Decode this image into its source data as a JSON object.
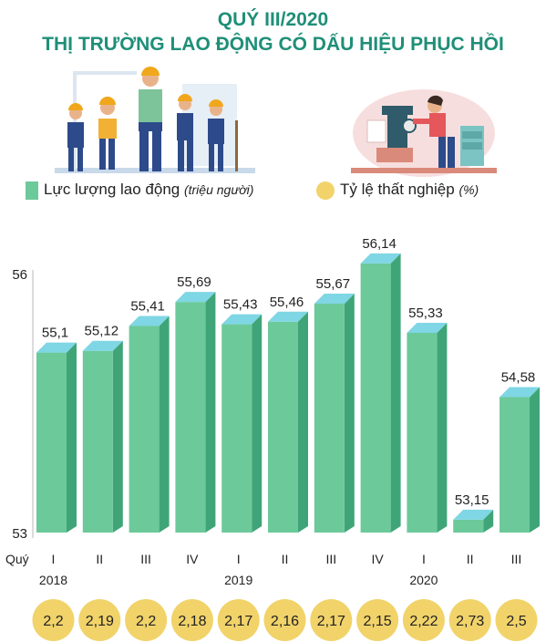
{
  "title_line1": "QUÝ III/2020",
  "title_line2": "THỊ TRƯỜNG LAO ĐỘNG CÓ DẤU HIỆU PHỤC HỒI",
  "legend": {
    "labor_label": "Lực lượng lao động",
    "labor_unit": "(triệu người)",
    "rate_label": "Tỷ lệ thất nghiệp",
    "rate_unit": "(%)"
  },
  "colors": {
    "title": "#1f8f78",
    "bar_front": "#6cc99a",
    "bar_side": "#3fa578",
    "bar_top": "#7fd6e4",
    "circle": "#f1d36a"
  },
  "chart_data": {
    "type": "bar",
    "x_axis_label": "Quý",
    "categories": [
      "I",
      "II",
      "III",
      "IV",
      "I",
      "II",
      "III",
      "IV",
      "I",
      "II",
      "III"
    ],
    "year_labels": [
      {
        "year": "2018",
        "under_index": 0
      },
      {
        "year": "2019",
        "under_index": 4
      },
      {
        "year": "2020",
        "under_index": 8
      }
    ],
    "y_ticks": [
      "56",
      "53"
    ],
    "ylim": [
      53,
      56
    ],
    "series": [
      {
        "name": "Lực lượng lao động",
        "values": [
          55.1,
          55.12,
          55.41,
          55.69,
          55.43,
          55.46,
          55.67,
          56.14,
          55.33,
          53.15,
          54.58
        ],
        "value_labels": [
          "55,1",
          "55,12",
          "55,41",
          "55,69",
          "55,43",
          "55,46",
          "55,67",
          "56,14",
          "55,33",
          "53,15",
          "54,58"
        ]
      },
      {
        "name": "Tỷ lệ thất nghiệp",
        "values": [
          2.2,
          2.19,
          2.2,
          2.18,
          2.17,
          2.16,
          2.17,
          2.15,
          2.22,
          2.73,
          2.5
        ],
        "value_labels": [
          "2,2",
          "2,19",
          "2,2",
          "2,18",
          "2,17",
          "2,16",
          "2,17",
          "2,15",
          "2,22",
          "2,73",
          "2,5"
        ]
      }
    ]
  }
}
